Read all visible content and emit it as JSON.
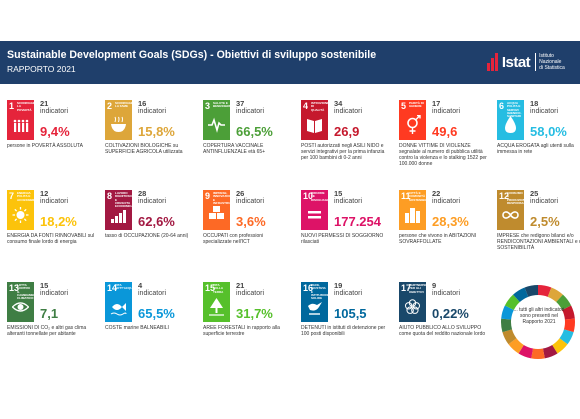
{
  "header": {
    "title": "Sustainable Development Goals (SDGs) - Obiettivi di sviluppo sostenibile",
    "subtitle": "RAPPORTO 2021",
    "logo_text": "Istat",
    "logo_sub1": "Istituto Nazionale",
    "logo_sub2": "di Statistica",
    "colors": {
      "background": "#1f3f6b",
      "text": "#ffffff"
    }
  },
  "indicator_word": "indicatori",
  "goals": [
    {
      "number": "1",
      "label": "Sconfiggere la povertà",
      "color": "#e5243b",
      "icon": "family-icon",
      "count": "21",
      "value": "9,4%",
      "desc": "persone in POVERTÀ ASSOLUTA"
    },
    {
      "number": "2",
      "label": "Sconfiggere la fame",
      "color": "#dda63a",
      "icon": "bowl-icon",
      "count": "16",
      "value": "15,8%",
      "desc": "COLTIVAZIONI BIOLOGICHE su SUPERFICIE AGRICOLA utilizzata"
    },
    {
      "number": "3",
      "label": "Salute e benessere",
      "color": "#4c9f38",
      "icon": "heartbeat-icon",
      "count": "37",
      "value": "66,5%",
      "desc": "COPERTURA VACCINALE ANTINFLUENZALE età 65+"
    },
    {
      "number": "4",
      "label": "Istruzione di qualità",
      "color": "#c5192d",
      "icon": "book-icon",
      "count": "34",
      "value": "26,9",
      "desc": "POSTI autorizzati negli ASILI NIDO e servizi integrativi per la prima infanzia per 100 bambini di 0-2 anni"
    },
    {
      "number": "5",
      "label": "Parità di genere",
      "color": "#ff3a21",
      "icon": "gender-icon",
      "count": "17",
      "value": "49,6",
      "desc": "DONNE VITTIME DI VIOLENZE segnalate al numero di pubblica utilità contro la violenza e lo stalking 1522 per 100.000 donne"
    },
    {
      "number": "6",
      "label": "Acqua pulita e servizi igienico-sanitari",
      "color": "#26bde2",
      "icon": "water-drop-icon",
      "count": "18",
      "value": "58,0%",
      "desc": "ACQUA EROGATA agli utenti sulla immessa in rete"
    },
    {
      "number": "7",
      "label": "Energia pulita e accessibile",
      "color": "#fcc30b",
      "icon": "sun-icon",
      "count": "12",
      "value": "18,2%",
      "desc": "ENERGIA DA FONTI RINNOVABILI sul consumo finale lordo di energia"
    },
    {
      "number": "8",
      "label": "Lavoro dignitoso e crescita economica",
      "color": "#a21942",
      "icon": "growth-chart-icon",
      "count": "28",
      "value": "62,6%",
      "desc": "tasso di OCCUPAZIONE (20-64 anni)"
    },
    {
      "number": "9",
      "label": "Imprese, innovazione e infrastrutture",
      "color": "#fd6925",
      "icon": "cubes-icon",
      "count": "26",
      "value": "3,6%",
      "desc": "OCCUPATI con professioni specializzate nell'ICT"
    },
    {
      "number": "10",
      "label": "Ridurre le disuguaglianze",
      "color": "#dd1367",
      "icon": "equality-icon",
      "count": "15",
      "value": "177.254",
      "desc": "NUOVI PERMESSI DI SOGGIORNO rilasciati"
    },
    {
      "number": "11",
      "label": "Città e comunità sostenibili",
      "color": "#fd9d24",
      "icon": "buildings-icon",
      "count": "22",
      "value": "28,3%",
      "desc": "persone che vivono in ABITAZIONI SOVRAFFOLLATE"
    },
    {
      "number": "12",
      "label": "Consumo e produzione responsabili",
      "color": "#bf8b2e",
      "icon": "infinity-icon",
      "count": "25",
      "value": "2,5%",
      "desc": "IMPRESE che redigono bilanci e/o RENDICONTAZIONI AMBIENTALI e di SOSTENIBILITÀ"
    },
    {
      "number": "13",
      "label": "Lotta contro il cambiamento climatico",
      "color": "#3f7e44",
      "icon": "eye-globe-icon",
      "count": "15",
      "value": "7,1",
      "desc": "EMISSIONI DI CO₂ e altri gas clima alteranti tonnellate per abitante"
    },
    {
      "number": "14",
      "label": "Vita sott'acqua",
      "color": "#0a97d9",
      "icon": "fish-icon",
      "count": "4",
      "value": "65,5%",
      "desc": "COSTE marine BALNEABILI"
    },
    {
      "number": "15",
      "label": "Vita sulla terra",
      "color": "#56c02b",
      "icon": "tree-icon",
      "count": "21",
      "value": "31,7%",
      "desc": "AREE FORESTALI in rapporto alla superficie terrestre"
    },
    {
      "number": "16",
      "label": "Pace, giustizia e istituzioni solide",
      "color": "#00689d",
      "icon": "dove-icon",
      "count": "19",
      "value": "105,5",
      "desc": "DETENUTI in istituti di detenzione per 100 posti disponibili"
    },
    {
      "number": "17",
      "label": "Partnership per gli obiettivi",
      "color": "#19486a",
      "icon": "rings-icon",
      "count": "9",
      "value": "0,22%",
      "desc": "AIUTO PUBBLICO ALLO SVILUPPO come quota del reddito nazionale lordo"
    }
  ],
  "footer_note": "... tutti gli altri indicatori sono presenti nel Rapporto 2021"
}
